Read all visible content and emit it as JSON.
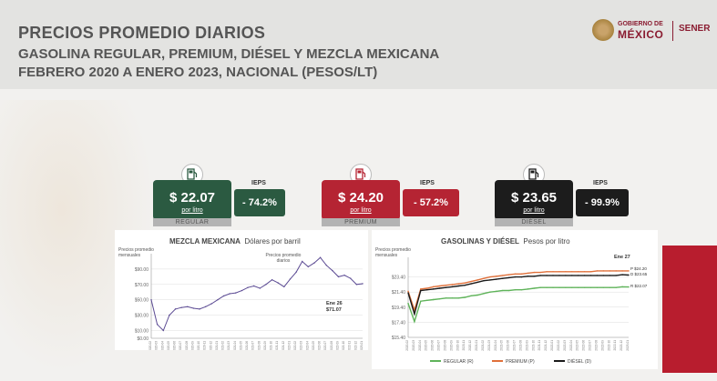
{
  "header": {
    "title": "PRECIOS PROMEDIO DIARIOS",
    "subtitle": "GASOLINA REGULAR, PREMIUM, DIÉSEL Y MEZCLA MEXICANA",
    "period": "FEBRERO 2020 A ENERO 2023, NACIONAL (PESOS/LT)"
  },
  "logo": {
    "gob_line1": "GOBIERNO DE",
    "gob_line2": "MÉXICO",
    "sener": "SENER"
  },
  "cards": [
    {
      "price": "$ 22.07",
      "unit": "por litro",
      "label": "REGULAR",
      "ieps_label": "IEPS",
      "ieps": "- 74.2%",
      "color": "#2b5a41"
    },
    {
      "price": "$ 24.20",
      "unit": "por litro",
      "label": "PREMIUM",
      "ieps_label": "IEPS",
      "ieps": "- 57.2%",
      "color": "#b52433"
    },
    {
      "price": "$ 23.65",
      "unit": "por litro",
      "label": "DIÉSEL",
      "ieps_label": "IEPS",
      "ieps": "- 99.9%",
      "color": "#1c1c1c"
    }
  ],
  "chart_data": [
    {
      "type": "line",
      "title": "MEZCLA MEXICANA",
      "subtitle": "Dólares por barril",
      "ylabel": "Precios promedio mensuales",
      "series_label": "Precios promedio diarios",
      "ylim": [
        0,
        110
      ],
      "yticks": [
        "$0.00",
        "$10.00",
        "$30.00",
        "$50.00",
        "$70.00",
        "$90.00"
      ],
      "ytick_values": [
        0,
        10,
        30,
        50,
        70,
        90
      ],
      "x": [
        "2020-02",
        "2020-03",
        "2020-04",
        "2020-05",
        "2020-06",
        "2020-07",
        "2020-08",
        "2020-09",
        "2020-10",
        "2020-11",
        "2020-12",
        "2021-01",
        "2021-02",
        "2021-03",
        "2021-04",
        "2021-05",
        "2021-06",
        "2021-07",
        "2021-08",
        "2021-09",
        "2021-10",
        "2021-11",
        "2021-12",
        "2022-01",
        "2022-02",
        "2022-03",
        "2022-04",
        "2022-05",
        "2022-06",
        "2022-07",
        "2022-08",
        "2022-09",
        "2022-10",
        "2022-11",
        "2022-12",
        "2023-01"
      ],
      "series": [
        {
          "values": [
            50,
            18,
            10,
            30,
            38,
            40,
            41,
            39,
            38,
            41,
            45,
            50,
            55,
            58,
            59,
            62,
            66,
            68,
            65,
            70,
            76,
            72,
            67,
            77,
            86,
            100,
            93,
            98,
            105,
            95,
            88,
            80,
            82,
            78,
            70,
            71
          ],
          "color": "#5b4a93"
        }
      ],
      "annotation": {
        "line1": "Ene 26",
        "line2": "$71.07"
      }
    },
    {
      "type": "line",
      "title": "GASOLINAS Y DIÉSEL",
      "subtitle": "Pesos por litro",
      "ylabel": "Precios promedio mensuales",
      "ylim": [
        15.4,
        26
      ],
      "yticks": [
        "$15.40",
        "$17.40",
        "$19.40",
        "$21.40",
        "$23.40"
      ],
      "ytick_values": [
        15.4,
        17.4,
        19.4,
        21.4,
        23.4
      ],
      "x": [
        "2020-02",
        "2020-03",
        "2020-04",
        "2020-05",
        "2020-06",
        "2020-07",
        "2020-08",
        "2020-09",
        "2020-10",
        "2020-11",
        "2020-12",
        "2021-01",
        "2021-02",
        "2021-03",
        "2021-04",
        "2021-05",
        "2021-06",
        "2021-07",
        "2021-08",
        "2021-09",
        "2021-10",
        "2021-11",
        "2021-12",
        "2022-01",
        "2022-02",
        "2022-03",
        "2022-04",
        "2022-05",
        "2022-06",
        "2022-07",
        "2022-08",
        "2022-09",
        "2022-10",
        "2022-11",
        "2022-12",
        "2023-01"
      ],
      "series": [
        {
          "name": "REGULAR (R)",
          "values": [
            19.9,
            17.5,
            20.2,
            20.3,
            20.4,
            20.5,
            20.6,
            20.6,
            20.6,
            20.7,
            20.9,
            21.0,
            21.2,
            21.4,
            21.5,
            21.6,
            21.6,
            21.7,
            21.7,
            21.8,
            21.9,
            22.0,
            22.0,
            22.0,
            22.0,
            22.0,
            22.0,
            22.0,
            22.0,
            22.0,
            22.0,
            22.0,
            22.0,
            22.0,
            22.1,
            22.07
          ],
          "color": "#5fb35a"
        },
        {
          "name": "PREMIUM (P)",
          "values": [
            21.5,
            19.0,
            21.8,
            21.9,
            22.1,
            22.2,
            22.3,
            22.4,
            22.5,
            22.6,
            22.8,
            23.0,
            23.2,
            23.4,
            23.5,
            23.6,
            23.7,
            23.8,
            23.8,
            23.9,
            24.0,
            24.0,
            24.1,
            24.1,
            24.1,
            24.1,
            24.1,
            24.1,
            24.1,
            24.1,
            24.2,
            24.2,
            24.2,
            24.2,
            24.2,
            24.2
          ],
          "color": "#e0703a"
        },
        {
          "name": "DIÉSEL (D)",
          "values": [
            21.3,
            18.5,
            21.6,
            21.7,
            21.8,
            21.9,
            22.0,
            22.1,
            22.2,
            22.3,
            22.5,
            22.7,
            22.9,
            23.0,
            23.1,
            23.2,
            23.3,
            23.4,
            23.4,
            23.5,
            23.5,
            23.6,
            23.6,
            23.6,
            23.6,
            23.6,
            23.6,
            23.6,
            23.6,
            23.6,
            23.6,
            23.6,
            23.6,
            23.6,
            23.7,
            23.65
          ],
          "color": "#1a1a1a"
        }
      ],
      "annotation": {
        "line1": "Ene 27",
        "labels": [
          "P $24.20",
          "D $23.65",
          "R $22.07"
        ]
      },
      "legend_position": "bottom"
    }
  ]
}
